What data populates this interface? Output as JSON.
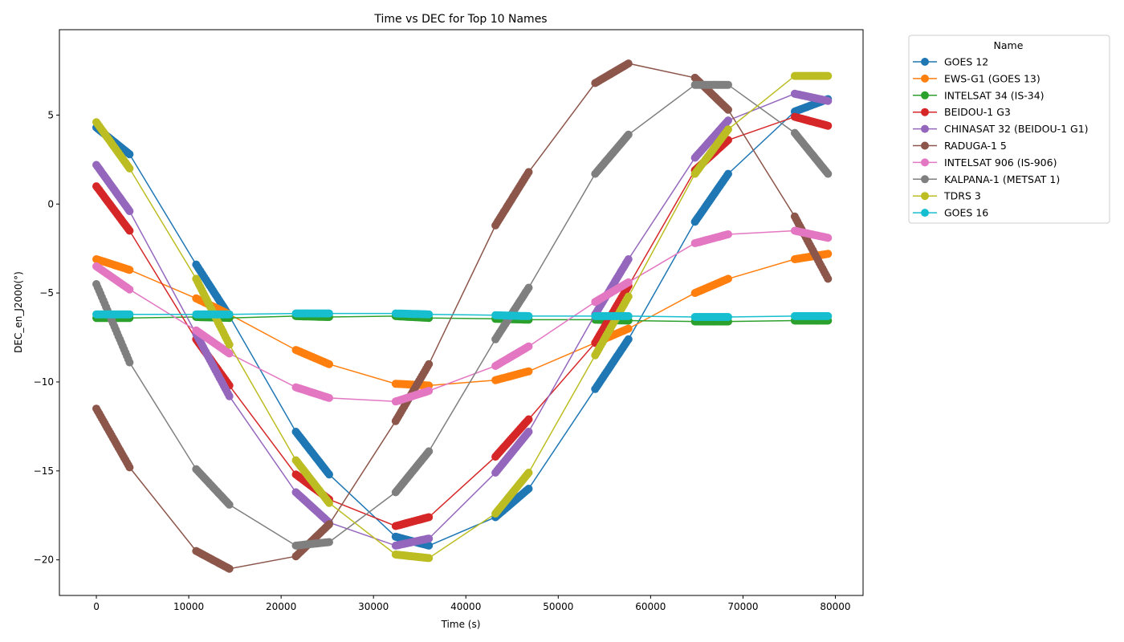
{
  "chart_data": {
    "type": "line",
    "title": "Time vs DEC for Top 10 Names",
    "xlabel": "Time (s)",
    "ylabel": "DEC_en_J2000(°)",
    "xlim": [
      -4000,
      83000
    ],
    "ylim": [
      -22,
      9.8
    ],
    "xticks": [
      0,
      10000,
      20000,
      30000,
      40000,
      50000,
      60000,
      70000,
      80000
    ],
    "yticks": [
      -20,
      -15,
      -10,
      -5,
      0,
      5
    ],
    "grid": false,
    "legend": {
      "title": "Name",
      "placement": "outside-top-right"
    },
    "series": [
      {
        "name": "GOES 12",
        "color": "#1f77b4",
        "segments": [
          {
            "x": [
              0,
              3600
            ],
            "y": [
              4.3,
              2.8
            ]
          },
          {
            "x": [
              10800,
              14400
            ],
            "y": [
              -3.4,
              -6.3
            ]
          },
          {
            "x": [
              21600,
              25200
            ],
            "y": [
              -12.8,
              -15.2
            ]
          },
          {
            "x": [
              32400,
              36000
            ],
            "y": [
              -18.7,
              -19.2
            ]
          },
          {
            "x": [
              43200,
              46800
            ],
            "y": [
              -17.6,
              -16.0
            ]
          },
          {
            "x": [
              54000,
              57600
            ],
            "y": [
              -10.4,
              -7.6
            ]
          },
          {
            "x": [
              64800,
              68400
            ],
            "y": [
              -1.0,
              1.7
            ]
          },
          {
            "x": [
              75600,
              79200
            ],
            "y": [
              5.2,
              5.9
            ]
          }
        ]
      },
      {
        "name": "EWS-G1 (GOES 13)",
        "color": "#ff7f0e",
        "segments": [
          {
            "x": [
              0,
              3600
            ],
            "y": [
              -3.1,
              -3.7
            ]
          },
          {
            "x": [
              10800,
              14400
            ],
            "y": [
              -5.3,
              -6.2
            ]
          },
          {
            "x": [
              21600,
              25200
            ],
            "y": [
              -8.2,
              -9.0
            ]
          },
          {
            "x": [
              32400,
              36000
            ],
            "y": [
              -10.1,
              -10.2
            ]
          },
          {
            "x": [
              43200,
              46800
            ],
            "y": [
              -9.9,
              -9.4
            ]
          },
          {
            "x": [
              54000,
              57600
            ],
            "y": [
              -7.8,
              -7.0
            ]
          },
          {
            "x": [
              64800,
              68400
            ],
            "y": [
              -5.0,
              -4.2
            ]
          },
          {
            "x": [
              75600,
              79200
            ],
            "y": [
              -3.1,
              -2.8
            ]
          }
        ]
      },
      {
        "name": "INTELSAT 34 (IS-34)",
        "color": "#2ca02c",
        "segments": [
          {
            "x": [
              0,
              3600
            ],
            "y": [
              -6.4,
              -6.4
            ]
          },
          {
            "x": [
              10800,
              14400
            ],
            "y": [
              -6.35,
              -6.4
            ]
          },
          {
            "x": [
              21600,
              25200
            ],
            "y": [
              -6.3,
              -6.35
            ]
          },
          {
            "x": [
              32400,
              36000
            ],
            "y": [
              -6.3,
              -6.4
            ]
          },
          {
            "x": [
              43200,
              46800
            ],
            "y": [
              -6.45,
              -6.5
            ]
          },
          {
            "x": [
              54000,
              57600
            ],
            "y": [
              -6.5,
              -6.55
            ]
          },
          {
            "x": [
              64800,
              68400
            ],
            "y": [
              -6.6,
              -6.6
            ]
          },
          {
            "x": [
              75600,
              79200
            ],
            "y": [
              -6.55,
              -6.55
            ]
          }
        ]
      },
      {
        "name": "BEIDOU-1 G3",
        "color": "#d62728",
        "segments": [
          {
            "x": [
              0,
              3600
            ],
            "y": [
              1.0,
              -1.5
            ]
          },
          {
            "x": [
              10800,
              14400
            ],
            "y": [
              -7.6,
              -10.2
            ]
          },
          {
            "x": [
              21600,
              25200
            ],
            "y": [
              -15.2,
              -16.6
            ]
          },
          {
            "x": [
              32400,
              36000
            ],
            "y": [
              -18.1,
              -17.6
            ]
          },
          {
            "x": [
              43200,
              46800
            ],
            "y": [
              -14.2,
              -12.1
            ]
          },
          {
            "x": [
              54000,
              57600
            ],
            "y": [
              -7.8,
              -4.6
            ]
          },
          {
            "x": [
              64800,
              68400
            ],
            "y": [
              1.9,
              3.6
            ]
          },
          {
            "x": [
              75600,
              79200
            ],
            "y": [
              4.9,
              4.4
            ]
          }
        ]
      },
      {
        "name": "CHINASAT 32 (BEIDOU-1 G1)",
        "color": "#9467bd",
        "segments": [
          {
            "x": [
              0,
              3600
            ],
            "y": [
              2.2,
              -0.4
            ]
          },
          {
            "x": [
              10800,
              14400
            ],
            "y": [
              -7.3,
              -10.8
            ]
          },
          {
            "x": [
              21600,
              25200
            ],
            "y": [
              -16.2,
              -17.9
            ]
          },
          {
            "x": [
              32400,
              36000
            ],
            "y": [
              -19.2,
              -18.8
            ]
          },
          {
            "x": [
              43200,
              46800
            ],
            "y": [
              -15.1,
              -12.8
            ]
          },
          {
            "x": [
              54000,
              57600
            ],
            "y": [
              -6.2,
              -3.1
            ]
          },
          {
            "x": [
              64800,
              68400
            ],
            "y": [
              2.6,
              4.7
            ]
          },
          {
            "x": [
              75600,
              79200
            ],
            "y": [
              6.2,
              5.8
            ]
          }
        ]
      },
      {
        "name": "RADUGA-1 5",
        "color": "#8c564b",
        "segments": [
          {
            "x": [
              0,
              3600
            ],
            "y": [
              -11.5,
              -14.8
            ]
          },
          {
            "x": [
              10800,
              14400
            ],
            "y": [
              -19.5,
              -20.5
            ]
          },
          {
            "x": [
              21600,
              25200
            ],
            "y": [
              -19.8,
              -18.0
            ]
          },
          {
            "x": [
              32400,
              36000
            ],
            "y": [
              -12.2,
              -9.0
            ]
          },
          {
            "x": [
              43200,
              46800
            ],
            "y": [
              -1.2,
              1.8
            ]
          },
          {
            "x": [
              54000,
              57600
            ],
            "y": [
              6.8,
              7.9
            ]
          },
          {
            "x": [
              64800,
              68400
            ],
            "y": [
              7.1,
              5.3
            ]
          },
          {
            "x": [
              75600,
              79200
            ],
            "y": [
              -0.7,
              -4.2
            ]
          }
        ]
      },
      {
        "name": "INTELSAT 906 (IS-906)",
        "color": "#e377c2",
        "segments": [
          {
            "x": [
              0,
              3600
            ],
            "y": [
              -3.5,
              -4.8
            ]
          },
          {
            "x": [
              10800,
              14400
            ],
            "y": [
              -7.1,
              -8.4
            ]
          },
          {
            "x": [
              21600,
              25200
            ],
            "y": [
              -10.3,
              -10.9
            ]
          },
          {
            "x": [
              32400,
              36000
            ],
            "y": [
              -11.1,
              -10.5
            ]
          },
          {
            "x": [
              43200,
              46800
            ],
            "y": [
              -9.1,
              -8.0
            ]
          },
          {
            "x": [
              54000,
              57600
            ],
            "y": [
              -5.5,
              -4.4
            ]
          },
          {
            "x": [
              64800,
              68400
            ],
            "y": [
              -2.2,
              -1.7
            ]
          },
          {
            "x": [
              75600,
              79200
            ],
            "y": [
              -1.5,
              -1.9
            ]
          }
        ]
      },
      {
        "name": "KALPANA-1 (METSAT 1)",
        "color": "#7f7f7f",
        "segments": [
          {
            "x": [
              0,
              3600
            ],
            "y": [
              -4.5,
              -8.9
            ]
          },
          {
            "x": [
              10800,
              14400
            ],
            "y": [
              -14.9,
              -16.9
            ]
          },
          {
            "x": [
              21600,
              25200
            ],
            "y": [
              -19.2,
              -19.0
            ]
          },
          {
            "x": [
              32400,
              36000
            ],
            "y": [
              -16.2,
              -13.9
            ]
          },
          {
            "x": [
              43200,
              46800
            ],
            "y": [
              -7.6,
              -4.7
            ]
          },
          {
            "x": [
              54000,
              57600
            ],
            "y": [
              1.7,
              3.9
            ]
          },
          {
            "x": [
              64800,
              68400
            ],
            "y": [
              6.7,
              6.7
            ]
          },
          {
            "x": [
              75600,
              79200
            ],
            "y": [
              4.0,
              1.7
            ]
          }
        ]
      },
      {
        "name": "TDRS 3",
        "color": "#bcbd22",
        "segments": [
          {
            "x": [
              0,
              3600
            ],
            "y": [
              4.6,
              2.0
            ]
          },
          {
            "x": [
              10800,
              14400
            ],
            "y": [
              -4.2,
              -7.9
            ]
          },
          {
            "x": [
              21600,
              25200
            ],
            "y": [
              -14.4,
              -16.8
            ]
          },
          {
            "x": [
              32400,
              36000
            ],
            "y": [
              -19.7,
              -19.9
            ]
          },
          {
            "x": [
              43200,
              46800
            ],
            "y": [
              -17.4,
              -15.1
            ]
          },
          {
            "x": [
              54000,
              57600
            ],
            "y": [
              -8.5,
              -5.2
            ]
          },
          {
            "x": [
              64800,
              68400
            ],
            "y": [
              1.7,
              4.2
            ]
          },
          {
            "x": [
              75600,
              79200
            ],
            "y": [
              7.2,
              7.2
            ]
          }
        ]
      },
      {
        "name": "GOES 16",
        "color": "#17becf",
        "segments": [
          {
            "x": [
              0,
              3600
            ],
            "y": [
              -6.2,
              -6.2
            ]
          },
          {
            "x": [
              10800,
              14400
            ],
            "y": [
              -6.2,
              -6.2
            ]
          },
          {
            "x": [
              21600,
              25200
            ],
            "y": [
              -6.15,
              -6.15
            ]
          },
          {
            "x": [
              32400,
              36000
            ],
            "y": [
              -6.15,
              -6.2
            ]
          },
          {
            "x": [
              43200,
              46800
            ],
            "y": [
              -6.25,
              -6.3
            ]
          },
          {
            "x": [
              54000,
              57600
            ],
            "y": [
              -6.3,
              -6.3
            ]
          },
          {
            "x": [
              64800,
              68400
            ],
            "y": [
              -6.35,
              -6.35
            ]
          },
          {
            "x": [
              75600,
              79200
            ],
            "y": [
              -6.3,
              -6.3
            ]
          }
        ]
      }
    ]
  }
}
